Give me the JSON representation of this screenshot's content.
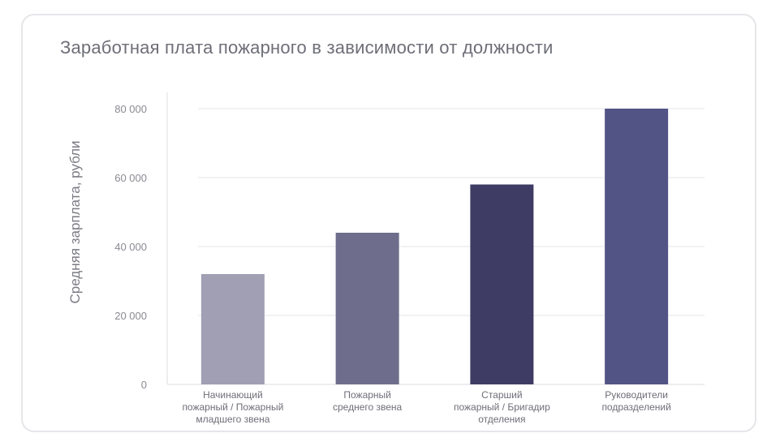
{
  "chart_data": {
    "type": "bar",
    "title": "Заработная плата пожарного в зависимости от должности",
    "xlabel": "",
    "ylabel": "Средняя зарплата, рубли",
    "categories": [
      [
        "Начинающий",
        "пожарный / Пожарный",
        "младшего звена"
      ],
      [
        "Пожарный",
        "среднего звена"
      ],
      [
        "Старший",
        "пожарный / Бригадир",
        "отделения"
      ],
      [
        "Руководители",
        "подразделений"
      ]
    ],
    "values": [
      32000,
      44000,
      58000,
      80000
    ],
    "colors": [
      "#a09fb3",
      "#6e6d8b",
      "#3e3c65",
      "#525486"
    ],
    "ylim": [
      0,
      80000
    ],
    "yticks": [
      0,
      20000,
      40000,
      60000,
      80000
    ],
    "ytick_labels": [
      "0",
      "20 000",
      "40 000",
      "60 000",
      "80 000"
    ],
    "grid": true,
    "legend": "none"
  }
}
